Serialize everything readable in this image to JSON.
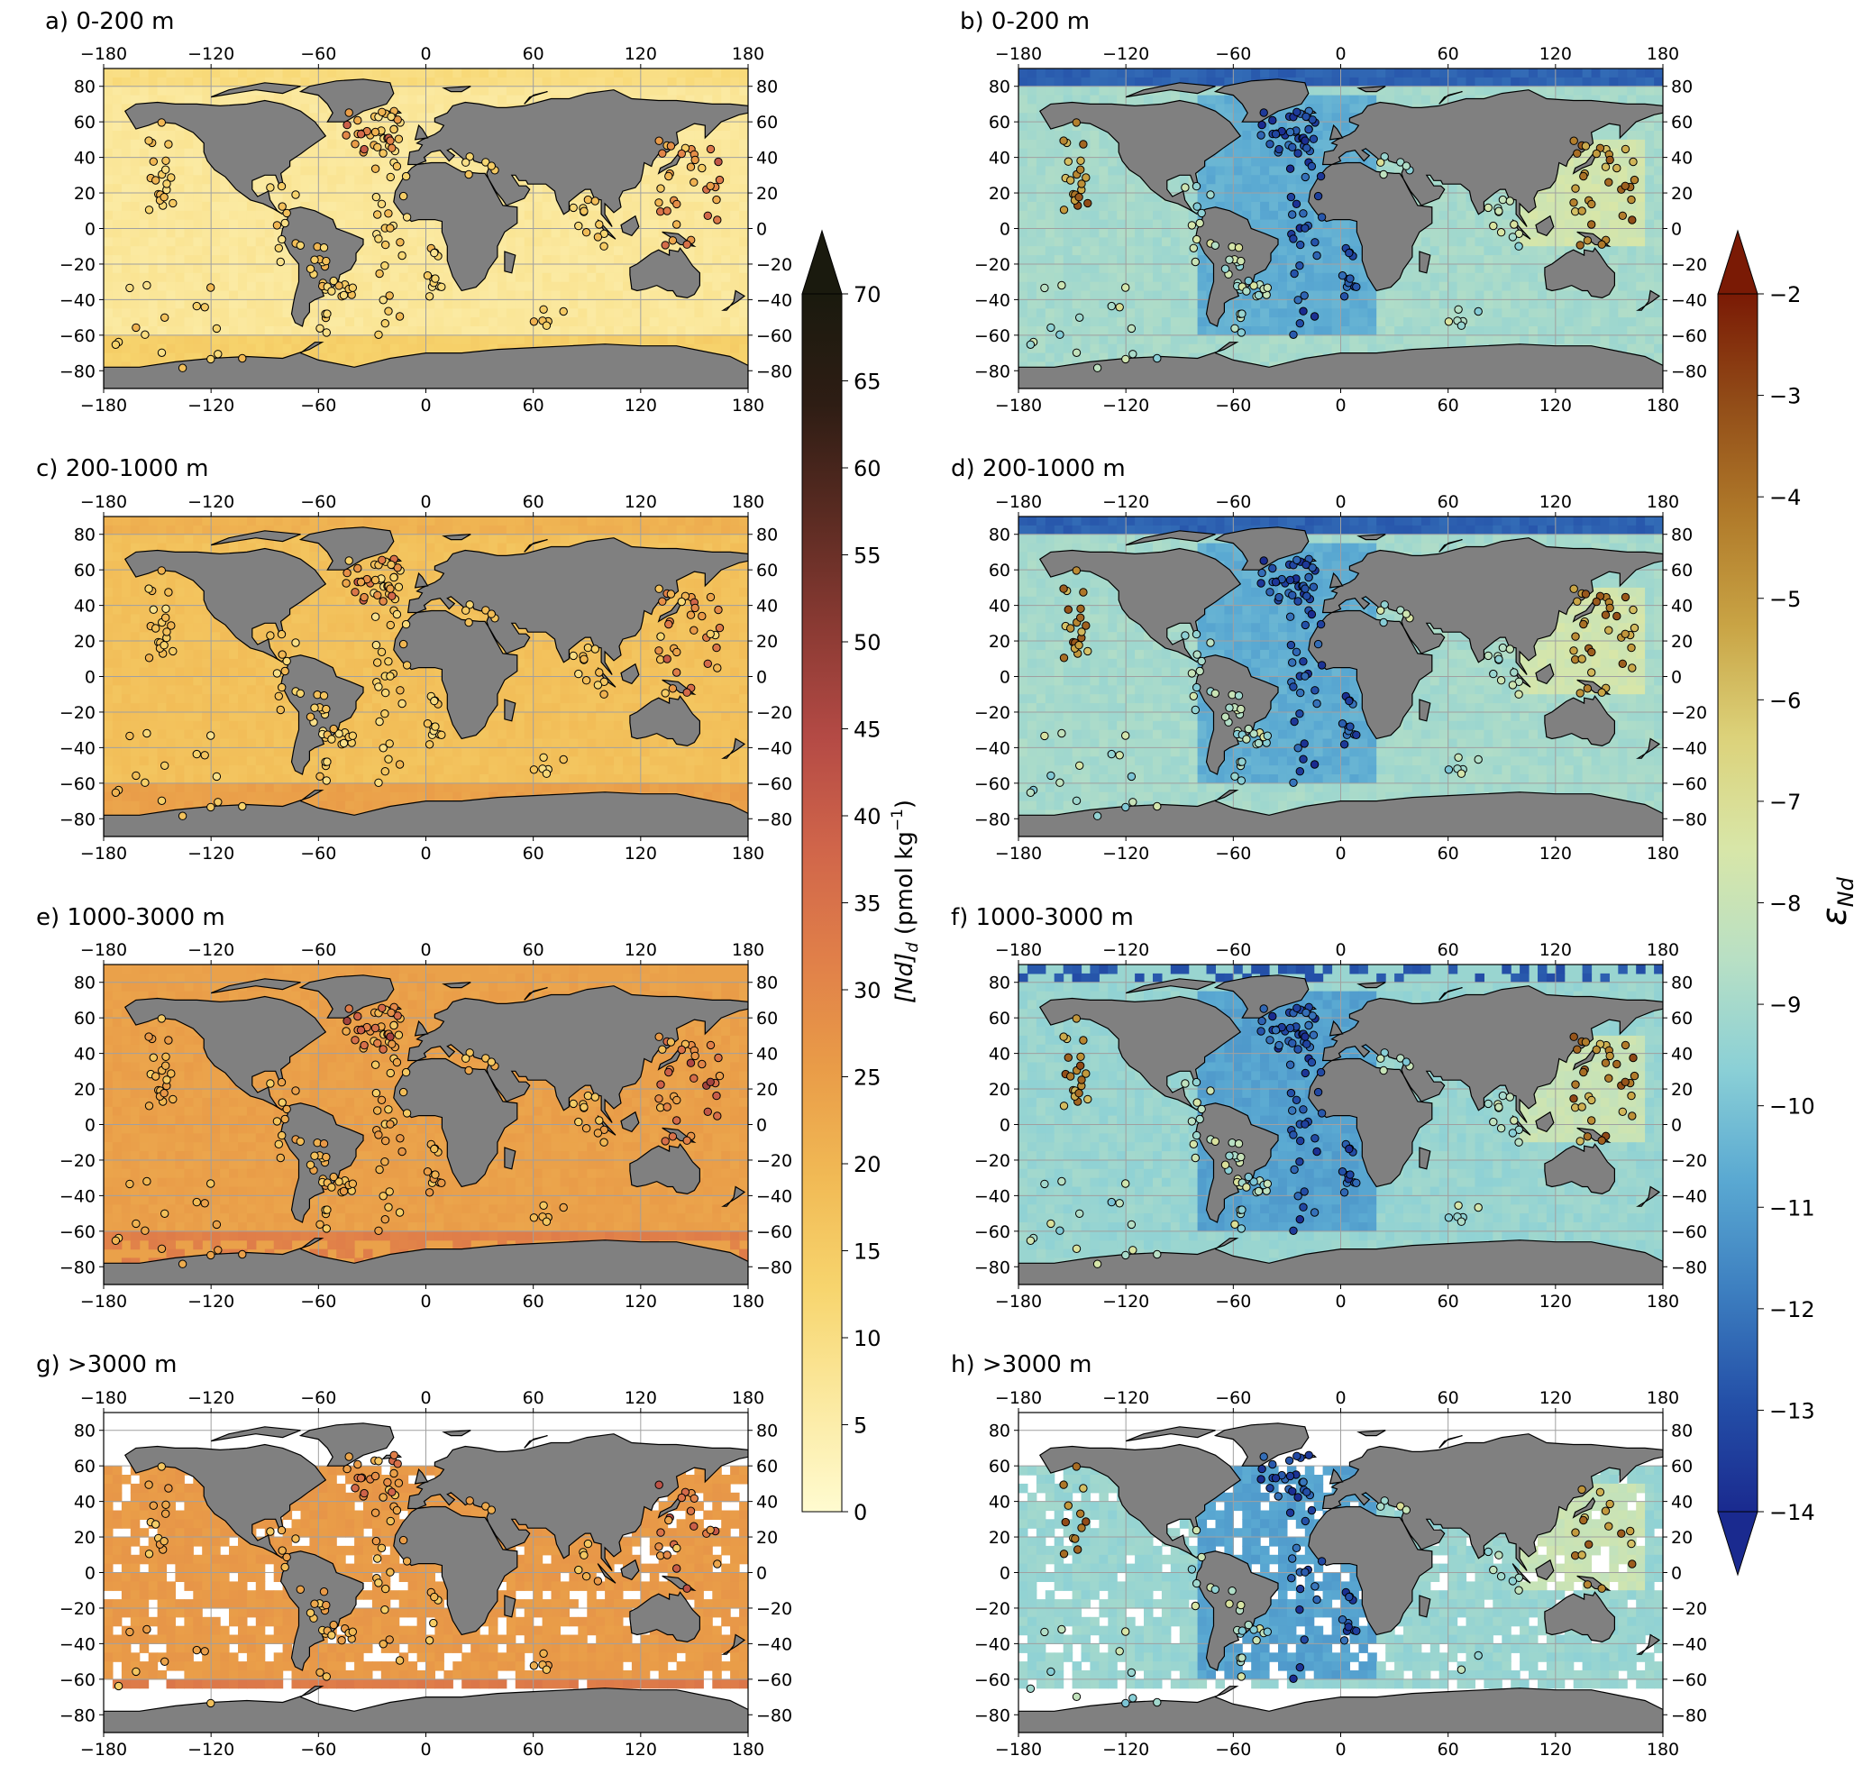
{
  "figure": {
    "lon_ticks": [
      -180,
      -120,
      -60,
      0,
      60,
      120,
      180
    ],
    "lat_ticks": [
      80,
      60,
      40,
      20,
      0,
      -20,
      -40,
      -60,
      -80
    ],
    "lon_range": [
      -180,
      180
    ],
    "lat_range": [
      -90,
      90
    ],
    "panels": [
      {
        "id": "a",
        "title": "a) 0-200 m",
        "variable": "nd",
        "depth_band": "0-200 m",
        "ocean_level": 0.1,
        "coverage": "full"
      },
      {
        "id": "b",
        "title": "b) 0-200 m",
        "variable": "eps",
        "depth_band": "0-200 m",
        "ocean_level": -9.0,
        "coverage": "full"
      },
      {
        "id": "c",
        "title": "c) 200-1000 m",
        "variable": "nd",
        "depth_band": "200-1000 m",
        "ocean_level": 0.25,
        "coverage": "full"
      },
      {
        "id": "d",
        "title": "d) 200-1000 m",
        "variable": "eps",
        "depth_band": "200-1000 m",
        "ocean_level": -9.0,
        "coverage": "full"
      },
      {
        "id": "e",
        "title": "e) 1000-3000 m",
        "variable": "nd",
        "depth_band": "1000-3000 m",
        "ocean_level": 0.35,
        "coverage": "partial"
      },
      {
        "id": "f",
        "title": "f) 1000-3000 m",
        "variable": "eps",
        "depth_band": "1000-3000 m",
        "ocean_level": -9.3,
        "coverage": "partial"
      },
      {
        "id": "g",
        "title": "g) >3000 m",
        "variable": "nd",
        "depth_band": ">3000 m",
        "ocean_level": 0.37,
        "coverage": "patchy"
      },
      {
        "id": "h",
        "title": "h) >3000 m",
        "variable": "eps",
        "depth_band": ">3000 m",
        "ocean_level": -9.3,
        "coverage": "patchy"
      }
    ],
    "land_color": "#808080",
    "grid_color": "#a0a0a0"
  },
  "colorbar_nd": {
    "label": "[Nd]d (pmol kg-1)",
    "label_main": "[Nd]",
    "label_sub": "d",
    "label_unit": " (pmol kg",
    "label_exp": "−1",
    "label_close": ")",
    "min": 0,
    "max": 70,
    "ticks": [
      "0",
      "5",
      "10",
      "15",
      "20",
      "25",
      "30",
      "35",
      "40",
      "45",
      "50",
      "55",
      "60",
      "65",
      "70"
    ],
    "extend": "max",
    "colors": [
      "#fffbd0",
      "#fbe9a0",
      "#f7d56e",
      "#f1ba55",
      "#e99c48",
      "#e07f49",
      "#d0654a",
      "#b44a45",
      "#8a3a33",
      "#5a2b22",
      "#2e1d14",
      "#1a1a0e"
    ]
  },
  "colorbar_eps": {
    "label": "εNd",
    "label_main": "ε",
    "label_sub": "Nd",
    "min": -14,
    "max": -2,
    "ticks": [
      "−2",
      "−3",
      "−4",
      "−5",
      "−6",
      "−7",
      "−8",
      "−9",
      "−10",
      "−11",
      "−12",
      "−13",
      "−14"
    ],
    "extend": "both",
    "colors": [
      "#1a2a8f",
      "#2450a8",
      "#3d7fc0",
      "#5aa9d2",
      "#8bd0d6",
      "#b9e0c4",
      "#d8e6a8",
      "#dcd27a",
      "#c9a445",
      "#b07a2a",
      "#924d18",
      "#7a1a05"
    ]
  },
  "chart_data": {
    "type": "map",
    "x": {
      "label": "",
      "range": [
        -180,
        180
      ],
      "ticks": [
        -180,
        -120,
        -60,
        0,
        60,
        120,
        180
      ]
    },
    "y": {
      "label": "",
      "range": [
        -90,
        90
      ],
      "ticks": [
        -80,
        -60,
        -40,
        -20,
        0,
        20,
        40,
        60,
        80
      ]
    },
    "series": [
      {
        "panel": "a",
        "variable": "[Nd]d",
        "depth": "0-200 m"
      },
      {
        "panel": "b",
        "variable": "εNd",
        "depth": "0-200 m"
      },
      {
        "panel": "c",
        "variable": "[Nd]d",
        "depth": "200-1000 m"
      },
      {
        "panel": "d",
        "variable": "εNd",
        "depth": "200-1000 m"
      },
      {
        "panel": "e",
        "variable": "[Nd]d",
        "depth": "1000-3000 m"
      },
      {
        "panel": "f",
        "variable": "εNd",
        "depth": "1000-3000 m"
      },
      {
        "panel": "g",
        "variable": "[Nd]d",
        "depth": ">3000 m"
      },
      {
        "panel": "h",
        "variable": "εNd",
        "depth": ">3000 m"
      }
    ]
  }
}
